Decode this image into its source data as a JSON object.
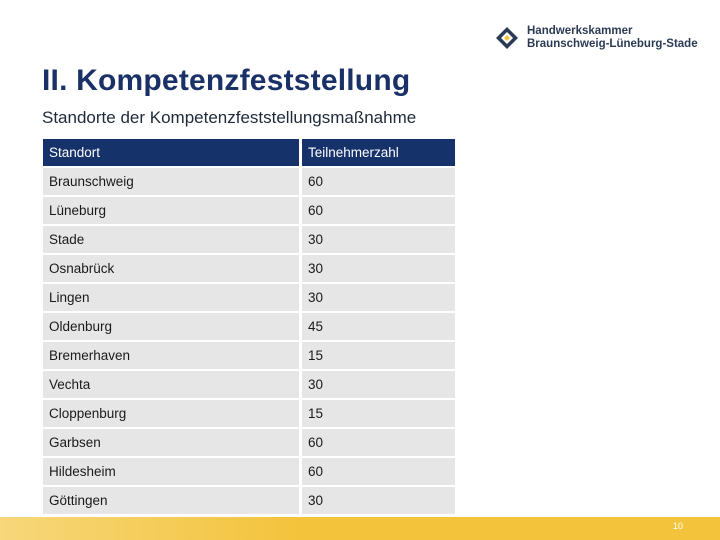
{
  "logo": {
    "icon": "hwk-logo-icon",
    "line1": "Handwerkskammer",
    "line2": "Braunschweig-Lüneburg-Stade"
  },
  "title": "II. Kompetenzfeststellung",
  "subtitle": "Standorte der Kompetenzfeststellungsmaßnahme",
  "table": {
    "headers": [
      "Standort",
      "Teilnehmerzahl"
    ],
    "rows": [
      [
        "Braunschweig",
        "60"
      ],
      [
        "Lüneburg",
        "60"
      ],
      [
        "Stade",
        "30"
      ],
      [
        "Osnabrück",
        "30"
      ],
      [
        "Lingen",
        "30"
      ],
      [
        "Oldenburg",
        "45"
      ],
      [
        "Bremerhaven",
        "15"
      ],
      [
        "Vechta",
        "30"
      ],
      [
        "Cloppenburg",
        "15"
      ],
      [
        "Garbsen",
        "60"
      ],
      [
        "Hildesheim",
        "60"
      ],
      [
        "Göttingen",
        "30"
      ]
    ]
  },
  "page_number": "10",
  "colors": {
    "header_bg": "#16326b",
    "row_bg": "#e6e6e7",
    "footer_bar": "#f3c33c",
    "title": "#1a3168"
  }
}
